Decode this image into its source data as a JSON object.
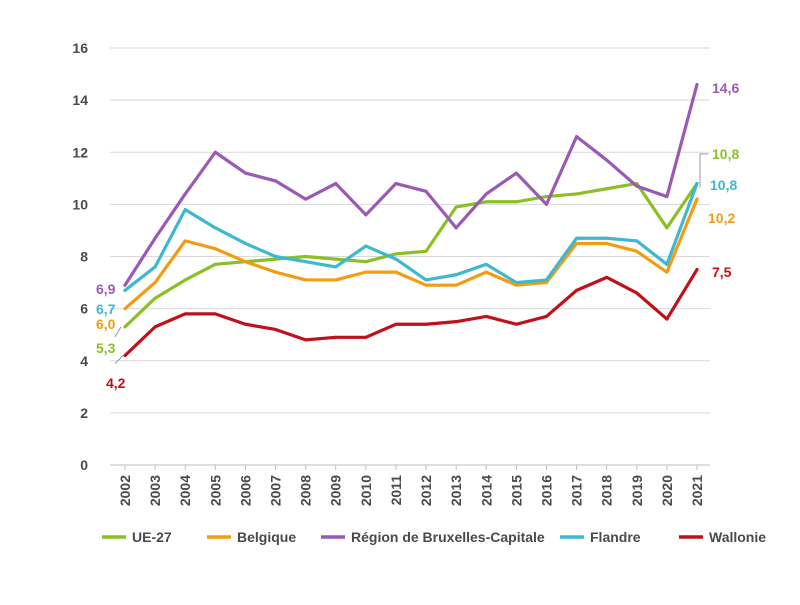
{
  "chart_data": {
    "type": "line",
    "title": "",
    "xlabel": "",
    "ylabel": "",
    "ylim": [
      0,
      16
    ],
    "yticks": [
      0,
      2,
      4,
      6,
      8,
      10,
      12,
      14,
      16
    ],
    "x": [
      "2002",
      "2003",
      "2004",
      "2005",
      "2006",
      "2007",
      "2008",
      "2009",
      "2010",
      "2011",
      "2012",
      "2013",
      "2014",
      "2015",
      "2016",
      "2017",
      "2018",
      "2019",
      "2020",
      "2021"
    ],
    "grid": "horizontal",
    "legend_position": "bottom",
    "series": [
      {
        "name": "UE-27",
        "color": "#8cbf26",
        "values": [
          5.3,
          6.4,
          7.1,
          7.7,
          7.8,
          7.9,
          8.0,
          7.9,
          7.8,
          8.1,
          8.2,
          9.9,
          10.1,
          10.1,
          10.3,
          10.4,
          10.6,
          10.8,
          9.1,
          10.8
        ],
        "start_label": "5,3",
        "end_label": "10,8"
      },
      {
        "name": "Belgique",
        "color": "#f39c12",
        "values": [
          6.0,
          7.0,
          8.6,
          8.3,
          7.8,
          7.4,
          7.1,
          7.1,
          7.4,
          7.4,
          6.9,
          6.9,
          7.4,
          6.9,
          7.0,
          8.5,
          8.5,
          8.2,
          7.4,
          10.2
        ],
        "start_label": "6,0",
        "end_label": "10,2"
      },
      {
        "name": "Région de Bruxelles-Capitale",
        "color": "#9b59b6",
        "values": [
          6.9,
          8.7,
          10.4,
          12.0,
          11.2,
          10.9,
          10.2,
          10.8,
          9.6,
          10.8,
          10.5,
          9.1,
          10.4,
          11.2,
          10.0,
          12.6,
          11.7,
          10.7,
          10.3,
          14.6
        ],
        "start_label": "6,9",
        "end_label": "14,6"
      },
      {
        "name": "Flandre",
        "color": "#3cb8d0",
        "values": [
          6.7,
          7.6,
          9.8,
          9.1,
          8.5,
          8.0,
          7.8,
          7.6,
          8.4,
          7.9,
          7.1,
          7.3,
          7.7,
          7.0,
          7.1,
          8.7,
          8.7,
          8.6,
          7.7,
          10.8
        ],
        "start_label": "6,7",
        "end_label": "10,8"
      },
      {
        "name": "Wallonie",
        "color": "#c0101a",
        "values": [
          4.2,
          5.3,
          5.8,
          5.8,
          5.4,
          5.2,
          4.8,
          4.9,
          4.9,
          5.4,
          5.4,
          5.5,
          5.7,
          5.4,
          5.7,
          6.7,
          7.2,
          6.6,
          5.6,
          7.5
        ],
        "start_label": "4,2",
        "end_label": "7,5"
      }
    ]
  }
}
